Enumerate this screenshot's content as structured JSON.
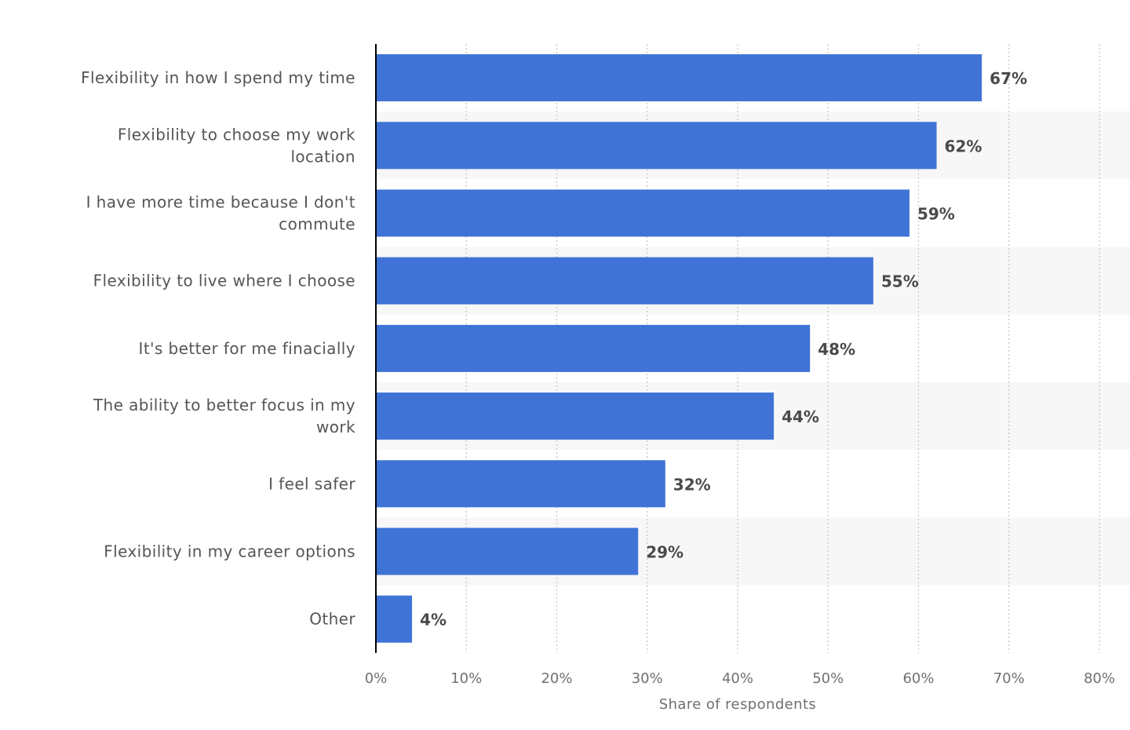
{
  "chart_data": {
    "type": "bar",
    "orientation": "horizontal",
    "categories": [
      "Flexibility in how I spend my time",
      "Flexibility to choose my work location",
      "I have more time because I don't commute",
      "Flexibility to live where I choose",
      "It's better for me finacially",
      "The ability to better focus in my work",
      "I feel safer",
      "Flexibility in my career options",
      "Other"
    ],
    "values": [
      67,
      62,
      59,
      55,
      48,
      44,
      32,
      29,
      4
    ],
    "value_labels": [
      "67%",
      "62%",
      "59%",
      "55%",
      "48%",
      "44%",
      "32%",
      "29%",
      "4%"
    ],
    "xlabel": "Share of respondents",
    "ylabel": "",
    "xlim": [
      0,
      80
    ],
    "x_ticks": [
      0,
      10,
      20,
      30,
      40,
      50,
      60,
      70,
      80
    ],
    "x_tick_labels": [
      "0%",
      "10%",
      "20%",
      "30%",
      "40%",
      "50%",
      "60%",
      "70%",
      "80%"
    ],
    "grid": true,
    "legend": "none",
    "colors": {
      "bar": "#3f73d6",
      "band": "#f7f7f7",
      "axis": "#000000",
      "grid": "#c8c8c8"
    }
  }
}
